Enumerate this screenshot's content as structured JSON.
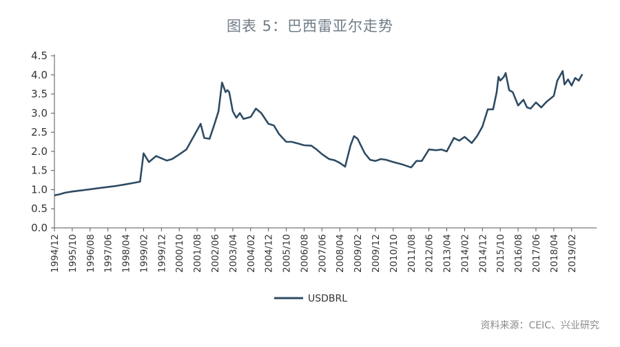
{
  "chart_title": "图表 5：巴西雷亚尔走势",
  "source": "资料来源：CEIC、兴业研究",
  "colors": {
    "line": "#2e4b63",
    "title": "#6f7b86",
    "axis": "#555555"
  },
  "chart_data": {
    "type": "line",
    "title": "图表 5：巴西雷亚尔走势",
    "ylim": [
      0,
      4.5
    ],
    "y_ticks": [
      "0.0",
      "0.5",
      "1.0",
      "1.5",
      "2.0",
      "2.5",
      "3.0",
      "3.5",
      "4.0",
      "4.5"
    ],
    "x_ticks": [
      "1994/12",
      "1995/10",
      "1996/08",
      "1997/06",
      "1998/04",
      "1999/02",
      "1999/12",
      "2000/10",
      "2001/08",
      "2002/06",
      "2003/04",
      "2004/02",
      "2004/12",
      "2005/10",
      "2006/08",
      "2007/06",
      "2008/04",
      "2009/02",
      "2009/12",
      "2010/10",
      "2011/08",
      "2012/06",
      "2013/04",
      "2014/02",
      "2014/12",
      "2015/10",
      "2016/08",
      "2017/06",
      "2018/04",
      "2019/02"
    ],
    "legend_position": "bottom",
    "grid": false,
    "series": [
      {
        "name": "USDBRL",
        "points": [
          [
            "1994/12",
            0.85
          ],
          [
            "1995/03",
            0.88
          ],
          [
            "1995/06",
            0.92
          ],
          [
            "1995/10",
            0.95
          ],
          [
            "1996/03",
            0.98
          ],
          [
            "1996/08",
            1.01
          ],
          [
            "1997/01",
            1.04
          ],
          [
            "1997/06",
            1.07
          ],
          [
            "1997/11",
            1.1
          ],
          [
            "1998/04",
            1.14
          ],
          [
            "1998/09",
            1.18
          ],
          [
            "1998/12",
            1.21
          ],
          [
            "1999/02",
            1.95
          ],
          [
            "1999/05",
            1.72
          ],
          [
            "1999/09",
            1.88
          ],
          [
            "1999/12",
            1.82
          ],
          [
            "2000/03",
            1.76
          ],
          [
            "2000/06",
            1.8
          ],
          [
            "2000/10",
            1.92
          ],
          [
            "2001/02",
            2.05
          ],
          [
            "2001/05",
            2.3
          ],
          [
            "2001/08",
            2.55
          ],
          [
            "2001/10",
            2.72
          ],
          [
            "2001/12",
            2.35
          ],
          [
            "2002/03",
            2.33
          ],
          [
            "2002/06",
            2.75
          ],
          [
            "2002/08",
            3.05
          ],
          [
            "2002/10",
            3.8
          ],
          [
            "2002/12",
            3.55
          ],
          [
            "2003/01",
            3.6
          ],
          [
            "2003/02",
            3.55
          ],
          [
            "2003/04",
            3.05
          ],
          [
            "2003/06",
            2.88
          ],
          [
            "2003/08",
            3.0
          ],
          [
            "2003/10",
            2.85
          ],
          [
            "2004/02",
            2.9
          ],
          [
            "2004/05",
            3.12
          ],
          [
            "2004/08",
            3.0
          ],
          [
            "2004/12",
            2.72
          ],
          [
            "2005/03",
            2.68
          ],
          [
            "2005/06",
            2.45
          ],
          [
            "2005/10",
            2.25
          ],
          [
            "2006/01",
            2.25
          ],
          [
            "2006/05",
            2.2
          ],
          [
            "2006/08",
            2.16
          ],
          [
            "2006/12",
            2.15
          ],
          [
            "2007/03",
            2.05
          ],
          [
            "2007/06",
            1.93
          ],
          [
            "2007/10",
            1.8
          ],
          [
            "2008/01",
            1.77
          ],
          [
            "2008/04",
            1.7
          ],
          [
            "2008/07",
            1.6
          ],
          [
            "2008/10",
            2.15
          ],
          [
            "2008/12",
            2.4
          ],
          [
            "2009/02",
            2.33
          ],
          [
            "2009/06",
            1.95
          ],
          [
            "2009/09",
            1.78
          ],
          [
            "2009/12",
            1.75
          ],
          [
            "2010/03",
            1.8
          ],
          [
            "2010/06",
            1.78
          ],
          [
            "2010/10",
            1.72
          ],
          [
            "2011/03",
            1.66
          ],
          [
            "2011/08",
            1.58
          ],
          [
            "2011/11",
            1.75
          ],
          [
            "2012/02",
            1.75
          ],
          [
            "2012/06",
            2.05
          ],
          [
            "2012/10",
            2.03
          ],
          [
            "2013/01",
            2.05
          ],
          [
            "2013/04",
            2.0
          ],
          [
            "2013/08",
            2.35
          ],
          [
            "2013/11",
            2.28
          ],
          [
            "2014/02",
            2.38
          ],
          [
            "2014/06",
            2.22
          ],
          [
            "2014/09",
            2.4
          ],
          [
            "2014/12",
            2.65
          ],
          [
            "2015/03",
            3.1
          ],
          [
            "2015/06",
            3.1
          ],
          [
            "2015/08",
            3.55
          ],
          [
            "2015/09",
            3.95
          ],
          [
            "2015/10",
            3.85
          ],
          [
            "2015/12",
            3.95
          ],
          [
            "2016/01",
            4.05
          ],
          [
            "2016/03",
            3.6
          ],
          [
            "2016/05",
            3.55
          ],
          [
            "2016/08",
            3.2
          ],
          [
            "2016/11",
            3.35
          ],
          [
            "2017/01",
            3.15
          ],
          [
            "2017/03",
            3.12
          ],
          [
            "2017/06",
            3.28
          ],
          [
            "2017/09",
            3.15
          ],
          [
            "2017/12",
            3.3
          ],
          [
            "2018/04",
            3.45
          ],
          [
            "2018/06",
            3.85
          ],
          [
            "2018/09",
            4.1
          ],
          [
            "2018/10",
            3.75
          ],
          [
            "2018/12",
            3.88
          ],
          [
            "2019/02",
            3.72
          ],
          [
            "2019/04",
            3.92
          ],
          [
            "2019/06",
            3.85
          ],
          [
            "2019/08",
            4.02
          ]
        ]
      }
    ]
  }
}
